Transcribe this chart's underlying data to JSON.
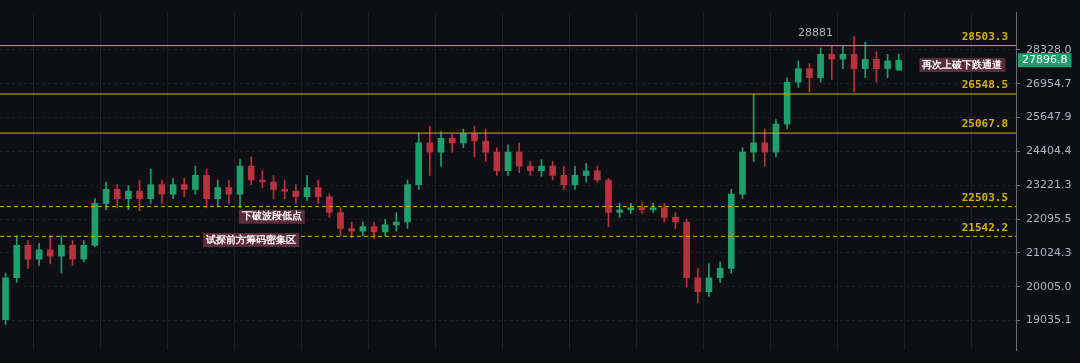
{
  "chart_data": {
    "type": "candlestick",
    "categories": [
      null,
      null,
      null,
      null,
      null,
      null,
      null,
      null,
      null,
      null,
      null,
      null,
      null,
      null,
      null,
      null,
      null,
      null,
      null,
      null,
      null,
      null,
      null,
      null,
      null,
      null,
      null,
      null,
      null,
      null,
      null,
      null,
      null,
      null,
      null,
      null,
      null,
      null,
      null,
      null,
      null,
      null,
      null,
      null,
      null,
      null,
      null,
      null,
      null,
      null,
      null,
      null,
      null,
      null,
      null,
      null,
      null,
      null,
      null,
      null,
      null,
      null,
      null,
      null,
      null,
      null,
      null,
      null,
      null,
      null,
      null,
      null,
      null,
      null,
      null,
      null,
      null,
      null,
      null,
      null,
      null,
      null,
      null,
      null,
      null,
      null,
      null,
      null,
      null,
      null,
      null
    ],
    "ohlc": [
      [
        19060,
        20410,
        18930,
        20270
      ],
      [
        20270,
        21560,
        20130,
        21260
      ],
      [
        21260,
        21410,
        20550,
        20830
      ],
      [
        20830,
        21320,
        20640,
        21120
      ],
      [
        21120,
        21560,
        20690,
        20920
      ],
      [
        20920,
        21560,
        20410,
        21260
      ],
      [
        21260,
        21410,
        20640,
        20830
      ],
      [
        20830,
        21410,
        20750,
        21260
      ],
      [
        21260,
        22770,
        21210,
        22610
      ],
      [
        22610,
        23330,
        22400,
        23080
      ],
      [
        23080,
        23240,
        22460,
        22770
      ],
      [
        22770,
        23210,
        22400,
        23020
      ],
      [
        23020,
        23400,
        22370,
        22770
      ],
      [
        22770,
        23780,
        22610,
        23240
      ],
      [
        23240,
        23400,
        22610,
        22920
      ],
      [
        22920,
        23460,
        22770,
        23240
      ],
      [
        23240,
        23460,
        22830,
        23080
      ],
      [
        23080,
        23880,
        22920,
        23560
      ],
      [
        23560,
        23780,
        22460,
        22770
      ],
      [
        22770,
        23400,
        22520,
        23140
      ],
      [
        23140,
        23400,
        22610,
        22920
      ],
      [
        22920,
        24110,
        22460,
        23880
      ],
      [
        23880,
        24210,
        23240,
        23400
      ],
      [
        23400,
        23720,
        23140,
        23330
      ],
      [
        23330,
        23560,
        22770,
        23080
      ],
      [
        23080,
        23400,
        22770,
        23020
      ],
      [
        23020,
        23240,
        22610,
        22830
      ],
      [
        22830,
        23560,
        22710,
        23140
      ],
      [
        23140,
        23400,
        22610,
        22830
      ],
      [
        22830,
        22920,
        22150,
        22310
      ],
      [
        22310,
        22460,
        21560,
        21790
      ],
      [
        21790,
        22000,
        21500,
        21710
      ],
      [
        21710,
        22000,
        21560,
        21850
      ],
      [
        21850,
        22000,
        21470,
        21680
      ],
      [
        21680,
        22090,
        21560,
        21910
      ],
      [
        21910,
        22310,
        21710,
        22000
      ],
      [
        22000,
        23400,
        21790,
        23240
      ],
      [
        23240,
        25050,
        23080,
        24710
      ],
      [
        24710,
        25330,
        23560,
        24380
      ],
      [
        24380,
        25120,
        23880,
        24880
      ],
      [
        24880,
        25050,
        24380,
        24710
      ],
      [
        24710,
        25220,
        24540,
        25050
      ],
      [
        25050,
        25330,
        24210,
        24780
      ],
      [
        24780,
        25220,
        24050,
        24380
      ],
      [
        24380,
        24540,
        23560,
        23720
      ],
      [
        23720,
        24640,
        23560,
        24380
      ],
      [
        24380,
        24710,
        23650,
        23880
      ],
      [
        23880,
        24050,
        23560,
        23720
      ],
      [
        23720,
        24110,
        23530,
        23880
      ],
      [
        23880,
        24050,
        23400,
        23560
      ],
      [
        23560,
        23880,
        23080,
        23240
      ],
      [
        23240,
        23880,
        23080,
        23560
      ],
      [
        23560,
        23980,
        23330,
        23720
      ],
      [
        23720,
        23880,
        23330,
        23400
      ],
      [
        23400,
        23460,
        21850,
        22310
      ],
      [
        22310,
        22610,
        22150,
        22400
      ],
      [
        22400,
        22610,
        22280,
        22460
      ],
      [
        22460,
        22640,
        22280,
        22400
      ],
      [
        22400,
        22610,
        22310,
        22460
      ],
      [
        22460,
        22610,
        22000,
        22150
      ],
      [
        22150,
        22310,
        21790,
        22000
      ],
      [
        22000,
        22090,
        20000,
        20270
      ],
      [
        20270,
        20550,
        19540,
        19860
      ],
      [
        19860,
        20690,
        19730,
        20270
      ],
      [
        20270,
        20750,
        20130,
        20550
      ],
      [
        20550,
        23080,
        20410,
        22920
      ],
      [
        22920,
        24540,
        22770,
        24380
      ],
      [
        24380,
        26530,
        24050,
        24710
      ],
      [
        24710,
        25220,
        23880,
        24380
      ],
      [
        24380,
        25570,
        24210,
        25400
      ],
      [
        25400,
        27190,
        25220,
        27010
      ],
      [
        27010,
        27870,
        26820,
        27560
      ],
      [
        27560,
        27750,
        26640,
        27190
      ],
      [
        27190,
        28410,
        27010,
        28140
      ],
      [
        28140,
        28520,
        27120,
        27940
      ],
      [
        27940,
        28520,
        27560,
        28140
      ],
      [
        28140,
        28881,
        26640,
        27560
      ],
      [
        27560,
        28640,
        27190,
        27940
      ],
      [
        27940,
        28250,
        27010,
        27560
      ],
      [
        27560,
        28140,
        27190,
        27870
      ],
      [
        27490,
        28140,
        27490,
        27896.8
      ],
      null,
      null,
      null,
      null,
      null,
      null,
      null,
      null,
      null,
      null
    ],
    "colors": [
      "#1f9e6e",
      "#1f9e6e",
      "#b8323f",
      "#1f9e6e",
      "#b8323f",
      "#1f9e6e",
      "#b8323f",
      "#1f9e6e",
      "#1f9e6e",
      "#1f9e6e",
      "#b8323f",
      "#1f9e6e",
      "#b8323f",
      "#1f9e6e",
      "#b8323f",
      "#1f9e6e",
      "#b8323f",
      "#1f9e6e",
      "#b8323f",
      "#1f9e6e",
      "#b8323f",
      "#1f9e6e",
      "#b8323f",
      "#b8323f",
      "#b8323f",
      "#b8323f",
      "#b8323f",
      "#1f9e6e",
      "#b8323f",
      "#b8323f",
      "#b8323f",
      "#b8323f",
      "#1f9e6e",
      "#b8323f",
      "#1f9e6e",
      "#1f9e6e",
      "#1f9e6e",
      "#1f9e6e",
      "#b8323f",
      "#1f9e6e",
      "#b8323f",
      "#1f9e6e",
      "#b8323f",
      "#b8323f",
      "#b8323f",
      "#1f9e6e",
      "#b8323f",
      "#b8323f",
      "#1f9e6e",
      "#b8323f",
      "#b8323f",
      "#1f9e6e",
      "#1f9e6e",
      "#b8323f",
      "#b8323f",
      "#1f9e6e",
      "#1f9e6e",
      "#b8323f",
      "#1f9e6e",
      "#b8323f",
      "#b8323f",
      "#b8323f",
      "#b8323f",
      "#1f9e6e",
      "#1f9e6e",
      "#1f9e6e",
      "#1f9e6e",
      "#1f9e6e",
      "#b8323f",
      "#1f9e6e",
      "#1f9e6e",
      "#1f9e6e",
      "#b8323f",
      "#1f9e6e",
      "#b8323f",
      "#1f9e6e",
      "#b8323f",
      "#1f9e6e",
      "#b8323f",
      "#1f9e6e",
      "#1f9e6e",
      null,
      null,
      null,
      null,
      null,
      null,
      null,
      null,
      null,
      null
    ],
    "log": true,
    "ylim": [
      18220,
      29920
    ],
    "yticks": [
      {
        "value": 28328,
        "label": "28328.0"
      },
      26954.7,
      25647.9,
      24404.4,
      23221.3,
      22095.5,
      21024.3,
      {
        "value": 20005,
        "label": "20005.0"
      },
      19035.1
    ],
    "tick_labels": "y",
    "grid": true,
    "ref_lines": [
      {
        "axis": "y",
        "value": 28503.3,
        "label": "28503.3",
        "color": "#d4b106"
      },
      {
        "axis": "y",
        "value": 26548.5,
        "label": "26548.5",
        "color": "#d4b106"
      },
      {
        "axis": "y",
        "value": 25067.8,
        "label": "25067.8",
        "color": "#d4b106"
      },
      {
        "axis": "y",
        "value": 22503.5,
        "label": "22503.5",
        "color": "#d4b106",
        "line_style": "dashed"
      },
      {
        "axis": "y",
        "value": 21542.2,
        "label": "21542.2",
        "color": "#d4b106",
        "line_style": "dashed"
      }
    ],
    "annotations": [
      "28881",
      "下破波段低点",
      "试探前方筹码密集区",
      "再次上破下跌通道",
      "27896.8"
    ]
  }
}
